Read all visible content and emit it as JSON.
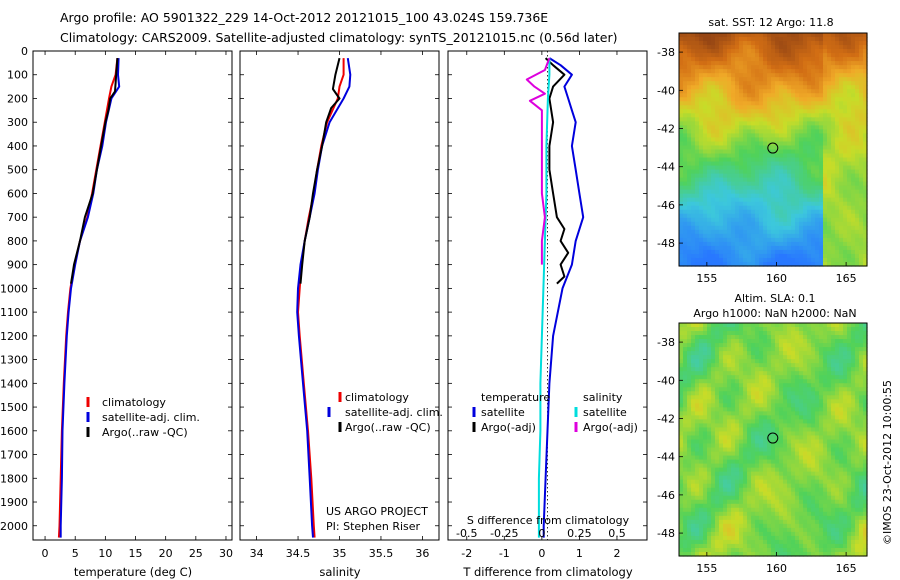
{
  "header": {
    "line1": "Argo profile: AO 5901322_229 14-Oct-2012 20121015_100 43.024S 159.736E",
    "line2": "Climatology: CARS2009. Satellite-adjusted climatology: synTS_20121015.nc (0.56d later)"
  },
  "colors": {
    "climatology": "#ee0000",
    "satellite": "#0000dd",
    "argo": "#000000",
    "salinity_sat": "#00dddd",
    "salinity_argo": "#dd00dd"
  },
  "depth_ticks": [
    "0",
    "100",
    "200",
    "300",
    "400",
    "500",
    "600",
    "700",
    "800",
    "900",
    "1000",
    "1100",
    "1200",
    "1300",
    "1400",
    "1500",
    "1600",
    "1700",
    "1800",
    "1900",
    "2000"
  ],
  "chart_data": [
    {
      "type": "line",
      "id": "temperature",
      "xlabel": "temperature (deg C)",
      "xlim": [
        -2,
        31
      ],
      "ylim": [
        0,
        2060
      ],
      "x_ticks": [
        "0",
        "5",
        "10",
        "15",
        "20",
        "25",
        "30"
      ],
      "legend": [
        "climatology",
        "satellite-adj. clim.",
        "Argo(..raw -QC)"
      ],
      "series": [
        {
          "name": "climatology",
          "depth": [
            30,
            100,
            150,
            200,
            300,
            400,
            500,
            600,
            700,
            800,
            900,
            1000,
            1100,
            1200,
            1400,
            1600,
            1800,
            2000,
            2050
          ],
          "values": [
            12.0,
            11.7,
            11.0,
            10.6,
            9.9,
            9.2,
            8.5,
            7.8,
            7.0,
            5.8,
            4.9,
            4.2,
            3.8,
            3.5,
            3.1,
            2.8,
            2.6,
            2.4,
            2.3
          ]
        },
        {
          "name": "satellite-adj. clim.",
          "depth": [
            30,
            100,
            150,
            200,
            300,
            400,
            500,
            600,
            700,
            800,
            900,
            1000,
            1100,
            1200,
            1400,
            1600,
            1800,
            2000,
            2050
          ],
          "values": [
            12.2,
            12.1,
            12.3,
            11.0,
            10.1,
            9.5,
            8.6,
            8.0,
            7.1,
            5.8,
            5.0,
            4.3,
            3.9,
            3.6,
            3.2,
            2.9,
            2.8,
            2.6,
            2.6
          ]
        },
        {
          "name": "Argo(..raw -QC)",
          "depth": [
            30,
            100,
            170,
            200,
            250,
            300,
            400,
            500,
            600,
            700,
            800,
            900,
            980
          ],
          "values": [
            12.0,
            11.8,
            11.6,
            10.8,
            10.5,
            10.0,
            9.3,
            8.6,
            7.9,
            6.6,
            5.8,
            4.8,
            4.3
          ]
        }
      ]
    },
    {
      "type": "line",
      "id": "salinity",
      "xlabel": "salinity",
      "xlim": [
        33.8,
        36.2
      ],
      "ylim": [
        0,
        2060
      ],
      "x_ticks": [
        "34",
        "34.5",
        "35",
        "35.5",
        "36"
      ],
      "legend": [
        "climatology",
        "satellite-adj. clim.",
        "Argo(..raw -QC)"
      ],
      "annotation": [
        "US ARGO PROJECT",
        "PI: Stephen Riser"
      ],
      "series": [
        {
          "name": "climatology",
          "depth": [
            30,
            100,
            150,
            200,
            300,
            400,
            500,
            600,
            700,
            800,
            900,
            1000,
            1100,
            1200,
            1400,
            1600,
            1800,
            2000,
            2050
          ],
          "values": [
            35.05,
            35.05,
            35.0,
            34.98,
            34.85,
            34.78,
            34.73,
            34.69,
            34.63,
            34.58,
            34.54,
            34.52,
            34.5,
            34.52,
            34.57,
            34.62,
            34.66,
            34.69,
            34.7
          ]
        },
        {
          "name": "satellite-adj. clim.",
          "depth": [
            30,
            100,
            150,
            200,
            300,
            400,
            500,
            600,
            700,
            800,
            900,
            1000,
            1100,
            1200,
            1400,
            1600,
            1800,
            2000,
            2050
          ],
          "values": [
            35.1,
            35.13,
            35.12,
            35.05,
            34.88,
            34.79,
            34.74,
            34.7,
            34.64,
            34.58,
            34.53,
            34.5,
            34.49,
            34.51,
            34.56,
            34.61,
            34.64,
            34.67,
            34.68
          ]
        },
        {
          "name": "Argo(..raw -QC)",
          "depth": [
            30,
            100,
            160,
            200,
            240,
            300,
            400,
            500,
            600,
            700,
            800,
            900,
            980
          ],
          "values": [
            35.0,
            34.95,
            34.92,
            35.0,
            34.9,
            34.84,
            34.79,
            34.73,
            34.68,
            34.64,
            34.58,
            34.55,
            34.53
          ]
        }
      ]
    },
    {
      "type": "line",
      "id": "differences",
      "xlabel": "T difference from climatology",
      "xlabel2": "S difference from climatology",
      "xlim": [
        -2.5,
        2.8
      ],
      "ylim": [
        0,
        2060
      ],
      "x_ticks": [
        "-2",
        "-1",
        "0",
        "1",
        "2"
      ],
      "s_ticks": [
        "-0.5",
        "-0.25",
        "0",
        "0.25",
        "0.5"
      ],
      "legend_titles": [
        "temperature",
        "salinity"
      ],
      "legend": [
        "satellite",
        "Argo(-adj)",
        "satellite",
        "Argo(-adj)"
      ],
      "series": [
        {
          "name": "satellite",
          "quantity": "temperature",
          "depth": [
            30,
            60,
            100,
            150,
            200,
            250,
            300,
            400,
            500,
            600,
            700,
            800,
            900,
            1000,
            1200,
            1400,
            1600,
            1800,
            2000,
            2050
          ],
          "values": [
            0.2,
            0.5,
            0.8,
            0.6,
            0.7,
            0.8,
            0.9,
            0.8,
            0.9,
            1.0,
            1.1,
            0.9,
            0.8,
            0.55,
            0.3,
            0.2,
            0.15,
            0.1,
            0.05,
            0.05
          ]
        },
        {
          "name": "Argo(-adj)",
          "quantity": "temperature",
          "depth": [
            30,
            60,
            100,
            150,
            200,
            300,
            400,
            500,
            600,
            700,
            750,
            800,
            850,
            900,
            950,
            980
          ],
          "values": [
            0.1,
            0.3,
            0.6,
            0.3,
            0.2,
            0.3,
            0.2,
            0.2,
            0.3,
            0.4,
            0.6,
            0.5,
            0.7,
            0.5,
            0.6,
            0.4
          ]
        },
        {
          "name": "satellite",
          "quantity": "salinity",
          "depth": [
            30,
            100,
            200,
            400,
            600,
            800,
            1000,
            1200,
            1400,
            1600,
            1800,
            2000,
            2050
          ],
          "values": [
            0.05,
            0.05,
            0.04,
            0.03,
            0.03,
            0.02,
            0.01,
            0.0,
            -0.01,
            -0.01,
            -0.02,
            -0.02,
            -0.02
          ]
        },
        {
          "name": "Argo(-adj)",
          "quantity": "salinity",
          "depth": [
            30,
            80,
            120,
            150,
            180,
            210,
            250,
            300,
            400,
            500,
            600,
            700,
            800,
            900
          ],
          "values": [
            0.05,
            0.02,
            -0.1,
            -0.05,
            0.02,
            -0.08,
            0.0,
            0.0,
            0.0,
            0.0,
            0.0,
            0.02,
            0.0,
            0.0
          ]
        }
      ]
    },
    {
      "type": "heatmap",
      "id": "sst-map",
      "title": "sat. SST: 12 Argo: 11.8",
      "xlim": [
        153,
        166.5
      ],
      "ylim": [
        -49.2,
        -37
      ],
      "x_ticks": [
        "155",
        "160",
        "165"
      ],
      "y_ticks": [
        "-38",
        "-40",
        "-42",
        "-44",
        "-46",
        "-48"
      ],
      "float_position": [
        159.736,
        -43.024
      ]
    },
    {
      "type": "heatmap",
      "id": "sla-map",
      "title": "Altim. SLA: 0.1",
      "subtitle": "Argo h1000: NaN h2000: NaN",
      "xlim": [
        153,
        166.5
      ],
      "ylim": [
        -49.2,
        -37
      ],
      "x_ticks": [
        "155",
        "160",
        "165"
      ],
      "y_ticks": [
        "-38",
        "-40",
        "-42",
        "-44",
        "-46",
        "-48"
      ],
      "float_position": [
        159.736,
        -43.024
      ]
    }
  ],
  "side_label": "©IMOS 23-Oct-2012 10:00:55"
}
